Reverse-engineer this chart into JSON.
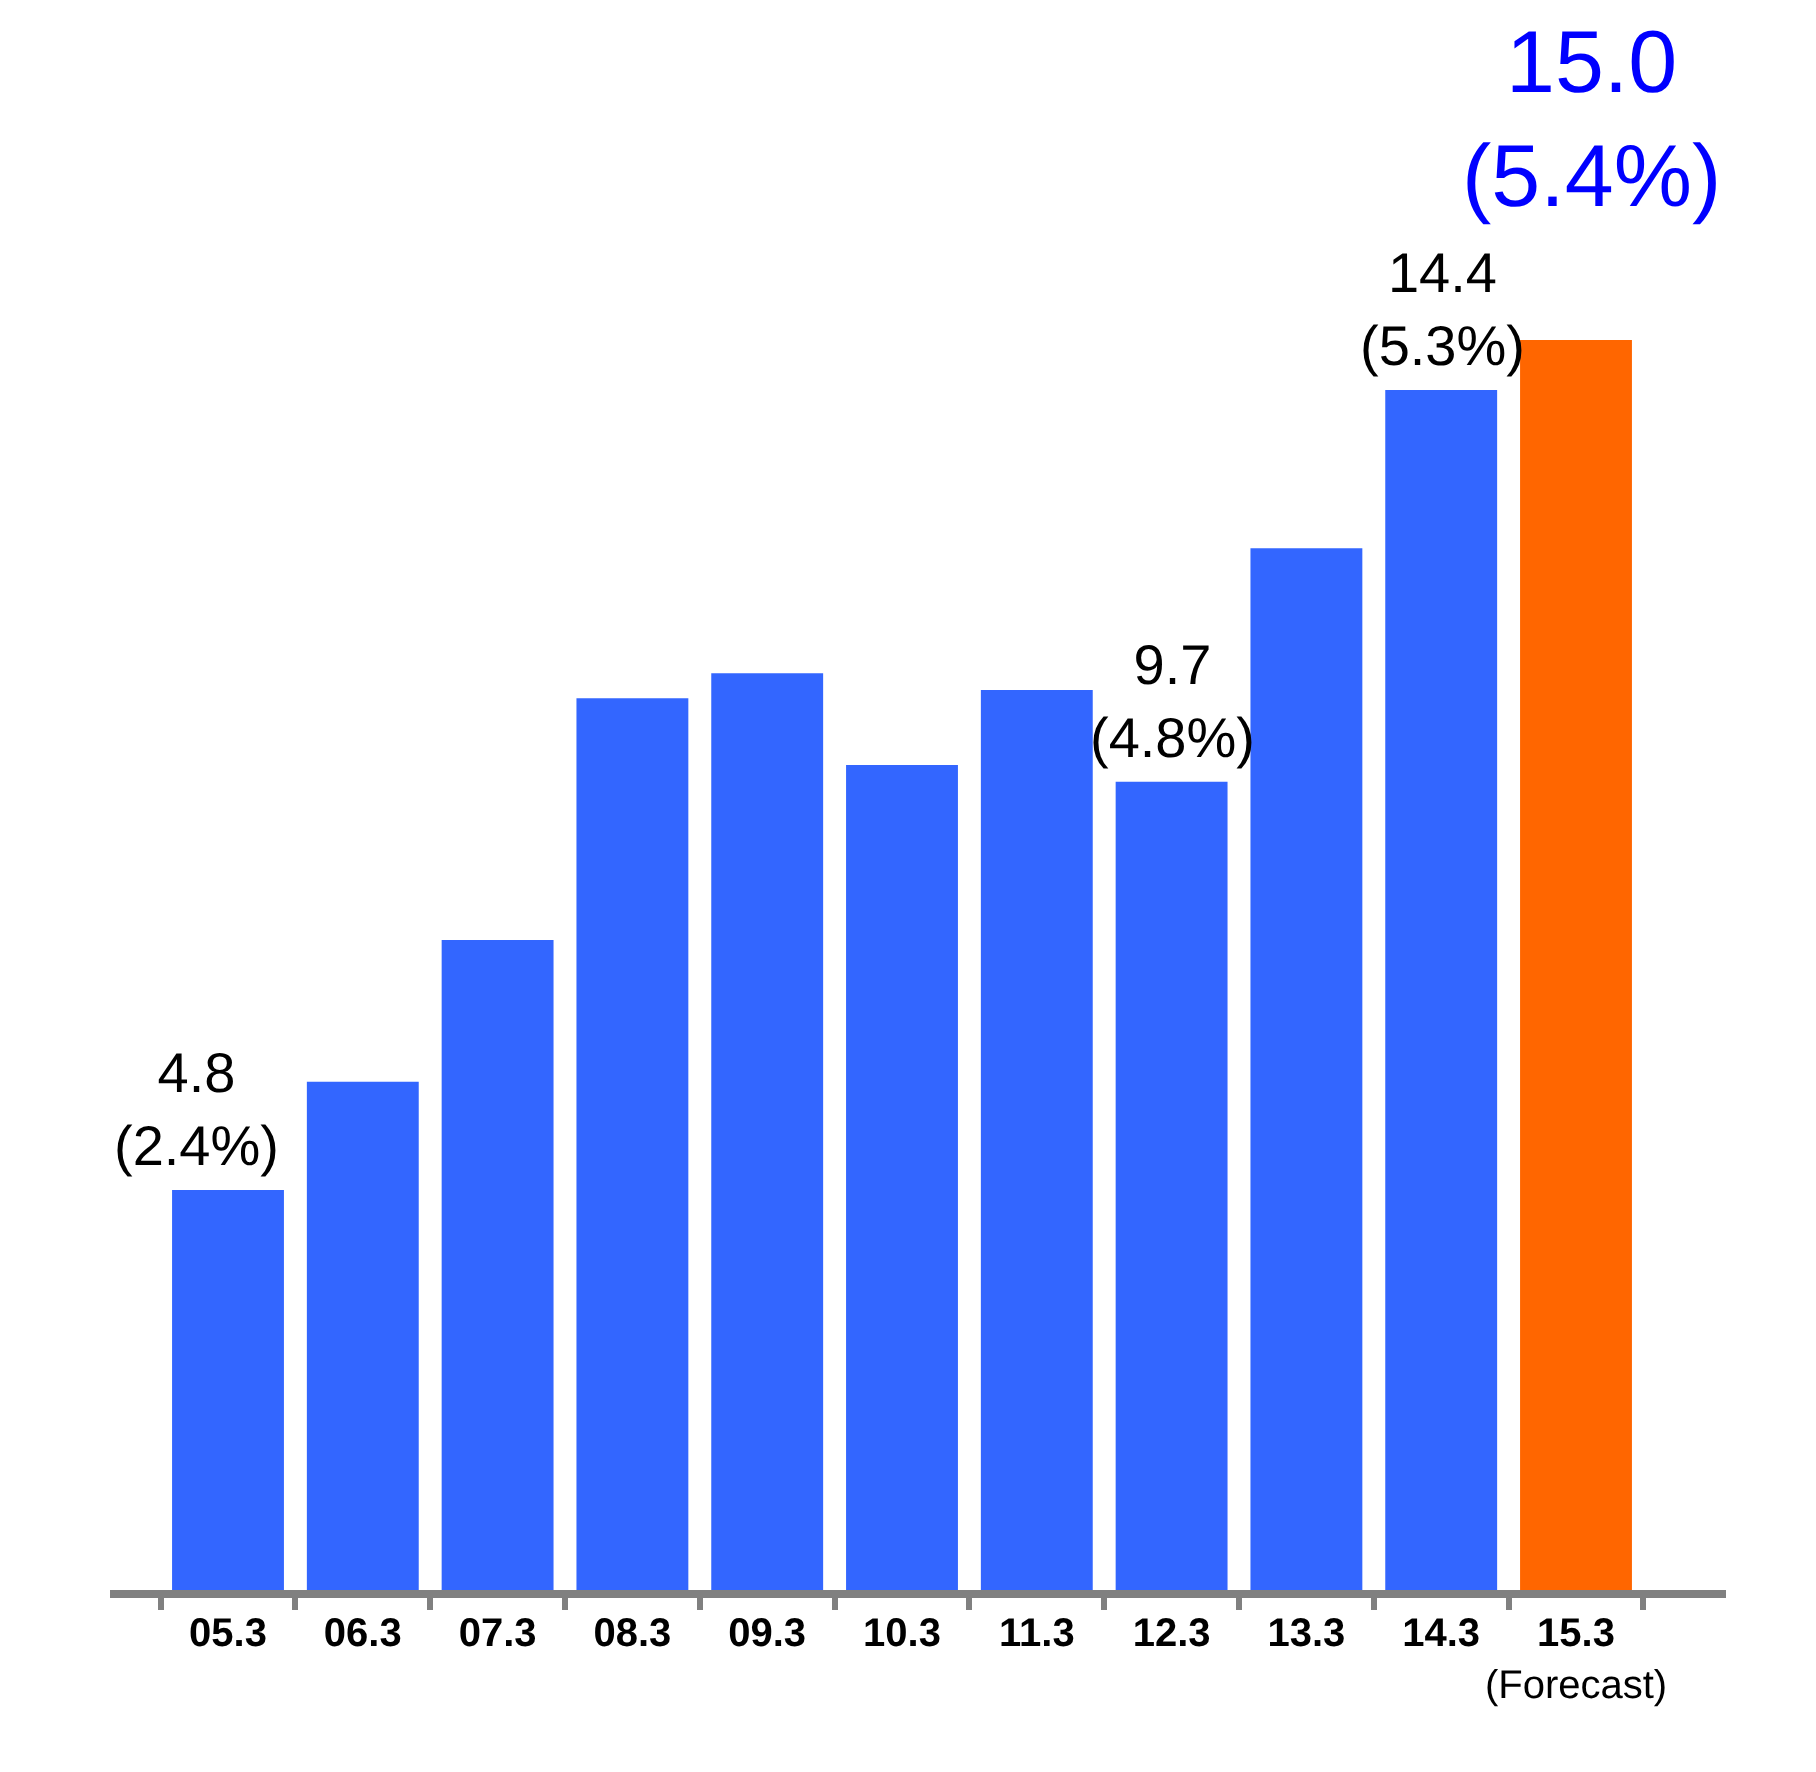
{
  "chart_data": {
    "type": "bar",
    "categories": [
      "05.3",
      "06.3",
      "07.3",
      "08.3",
      "09.3",
      "10.3",
      "11.3",
      "12.3",
      "13.3",
      "14.3",
      "15.3\n(Forecast)"
    ],
    "values": [
      4.8,
      6.1,
      7.8,
      10.7,
      11.0,
      9.9,
      10.8,
      9.7,
      12.5,
      14.4,
      15.0
    ],
    "colors": [
      "#3366ff",
      "#3366ff",
      "#3366ff",
      "#3366ff",
      "#3366ff",
      "#3366ff",
      "#3366ff",
      "#3366ff",
      "#3366ff",
      "#3366ff",
      "#ff6600"
    ],
    "value_labels": [
      "4.8\n(2.4%)",
      null,
      null,
      null,
      null,
      null,
      null,
      "9.7\n(4.8%)",
      null,
      "14.4\n(5.3%)",
      "15.0\n(5.4%)"
    ],
    "legend": false
  }
}
